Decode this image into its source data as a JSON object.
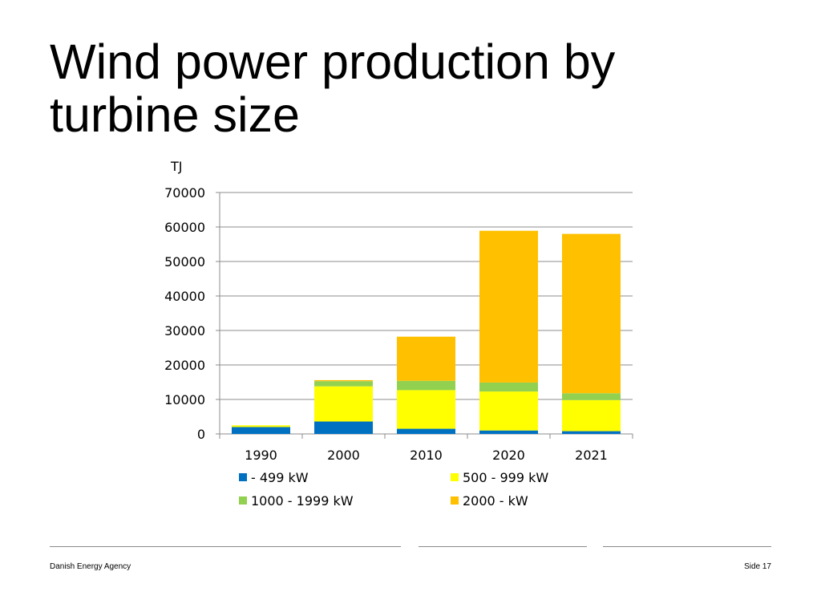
{
  "slide": {
    "title_line1": "Wind power production by",
    "title_line2": "turbine size"
  },
  "footer": {
    "left": "Danish Energy Agency",
    "right": "Side 17"
  },
  "chart_data": {
    "type": "bar",
    "stacked": true,
    "title": "",
    "xlabel": "",
    "ylabel": "TJ",
    "ylim": [
      0,
      70000
    ],
    "yticks": [
      0,
      10000,
      20000,
      30000,
      40000,
      50000,
      60000,
      70000
    ],
    "ytick_labels": [
      "0",
      "10000",
      "20000",
      "30000",
      "40000",
      "50000",
      "60000",
      "70000"
    ],
    "grid": true,
    "legend_position": "bottom",
    "categories": [
      "1990",
      "2000",
      "2010",
      "2020",
      "2021"
    ],
    "series": [
      {
        "name": "- 499 kW",
        "color": "#0070C0",
        "values": [
          2000,
          3600,
          1500,
          1000,
          800
        ]
      },
      {
        "name": "500 - 999 kW",
        "color": "#FFFF00",
        "values": [
          500,
          10200,
          11200,
          11300,
          9000
        ]
      },
      {
        "name": "1000 - 1999 kW",
        "color": "#92D050",
        "values": [
          0,
          1500,
          2700,
          2600,
          2000
        ]
      },
      {
        "name": "2000 - kW",
        "color": "#FFC000",
        "values": [
          0,
          300,
          12800,
          44000,
          46200
        ]
      }
    ]
  }
}
